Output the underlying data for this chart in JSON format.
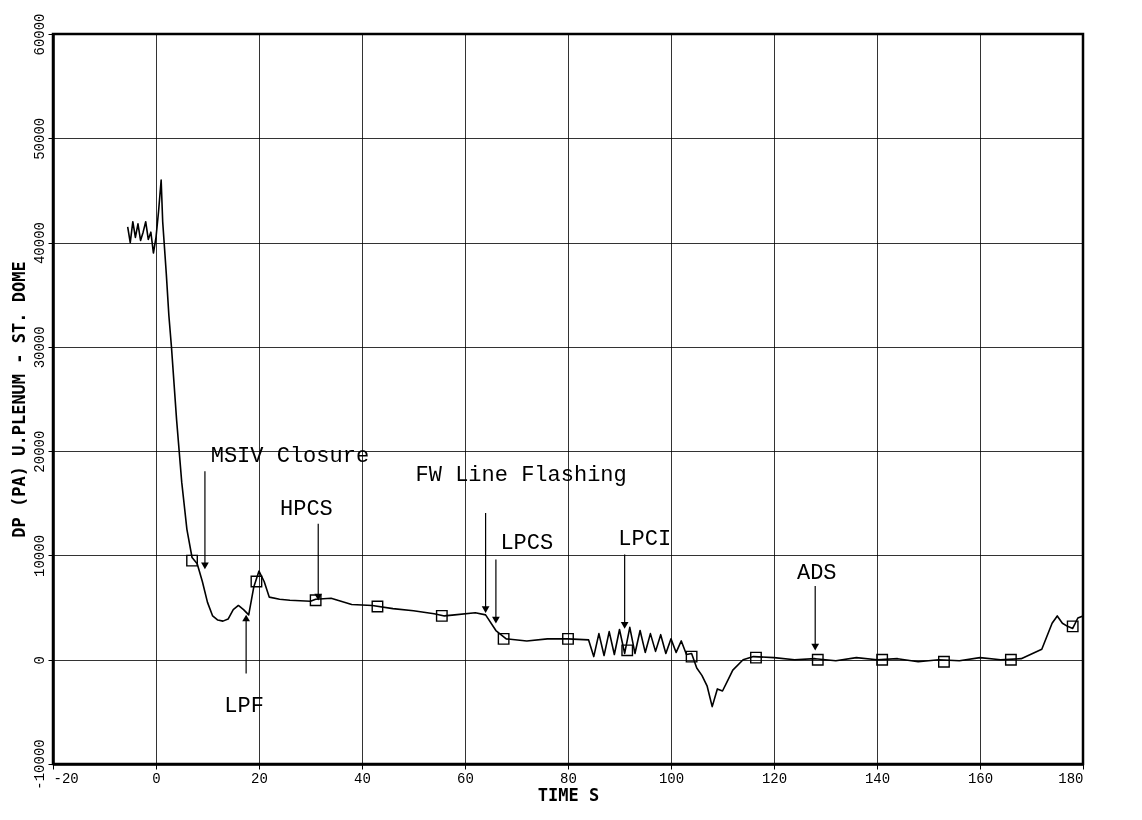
{
  "chart_data": {
    "type": "line",
    "xlabel": "TIME  S",
    "ylabel": "DP (PA)   U.PLENUM - ST. DOME",
    "xlim": [
      -20,
      180
    ],
    "ylim": [
      -10000,
      60000
    ],
    "xticks": [
      -20,
      0,
      20,
      40,
      60,
      80,
      100,
      120,
      140,
      160,
      180
    ],
    "yticks": [
      -10000,
      0,
      10000,
      20000,
      30000,
      40000,
      50000,
      60000
    ],
    "grid": true,
    "series": [
      {
        "type": "line",
        "color": "#000000",
        "x": [
          -5.5,
          -5,
          -4.5,
          -4,
          -3.5,
          -3,
          -2.5,
          -2,
          -1.5,
          -1,
          -0.5,
          0,
          0.5,
          1,
          1.3,
          2,
          2.5,
          3,
          4,
          5,
          6,
          7,
          8,
          9,
          10,
          11,
          12,
          13,
          14,
          15,
          16,
          17,
          18,
          19,
          20,
          21,
          22,
          24,
          26,
          30,
          31,
          34,
          38,
          42,
          46,
          50,
          54,
          56,
          58,
          62,
          64,
          66,
          68,
          72,
          76,
          80,
          84,
          85,
          86,
          87,
          88,
          89,
          90,
          91,
          92,
          93,
          94,
          95,
          96,
          97,
          98,
          99,
          100,
          101,
          102,
          103,
          104,
          105,
          106,
          107,
          108,
          109,
          110,
          111,
          112,
          114,
          116,
          120,
          124,
          128,
          132,
          136,
          140,
          144,
          148,
          152,
          156,
          160,
          164,
          168,
          172,
          174,
          175,
          176,
          177,
          178,
          179,
          180
        ],
        "values": [
          41500,
          40000,
          42000,
          40500,
          41800,
          40200,
          41000,
          42000,
          40300,
          41000,
          39000,
          40500,
          43000,
          46000,
          42000,
          37000,
          33000,
          30000,
          23000,
          17000,
          12500,
          9800,
          9200,
          7500,
          5500,
          4200,
          3800,
          3700,
          3900,
          4800,
          5200,
          4800,
          4300,
          7000,
          8500,
          7500,
          6000,
          5800,
          5700,
          5600,
          5800,
          5900,
          5300,
          5200,
          4900,
          4700,
          4400,
          4200,
          4300,
          4500,
          4300,
          2800,
          2000,
          1800,
          2000,
          2000,
          1900,
          300,
          2500,
          400,
          2700,
          500,
          2900,
          600,
          3100,
          600,
          2800,
          700,
          2500,
          800,
          2400,
          600,
          2000,
          700,
          1800,
          500,
          600,
          -800,
          -1500,
          -2500,
          -4500,
          -2800,
          -3000,
          -2000,
          -1000,
          0,
          300,
          200,
          0,
          100,
          -100,
          200,
          0,
          100,
          -200,
          0,
          -100,
          200,
          0,
          100,
          1000,
          3500,
          4200,
          3500,
          3200,
          3000,
          4000,
          4200
        ]
      },
      {
        "type": "scatter",
        "marker": "square",
        "color": "#000000",
        "x": [
          7,
          19.5,
          31,
          43,
          55.5,
          67.5,
          80,
          91.5,
          104,
          116.5,
          128.5,
          141,
          153,
          166,
          178
        ],
        "values": [
          9500,
          7500,
          5700,
          5100,
          4200,
          2000,
          2000,
          900,
          300,
          200,
          0,
          0,
          -200,
          0,
          3200
        ]
      }
    ],
    "annotations": [
      {
        "text": "MSIV Closure",
        "x": 9.5,
        "y": 9000
      },
      {
        "text": "HPCS",
        "x": 31.5,
        "y": 6000
      },
      {
        "text": "FW Line Flashing",
        "x": 64,
        "y": 4800
      },
      {
        "text": "LPCS",
        "x": 66,
        "y": 3800
      },
      {
        "text": "LPCI",
        "x": 91,
        "y": 3300
      },
      {
        "text": "ADS",
        "x": 128,
        "y": 1200
      },
      {
        "text": "LPF",
        "x": 17.5,
        "y": 4000
      }
    ]
  }
}
